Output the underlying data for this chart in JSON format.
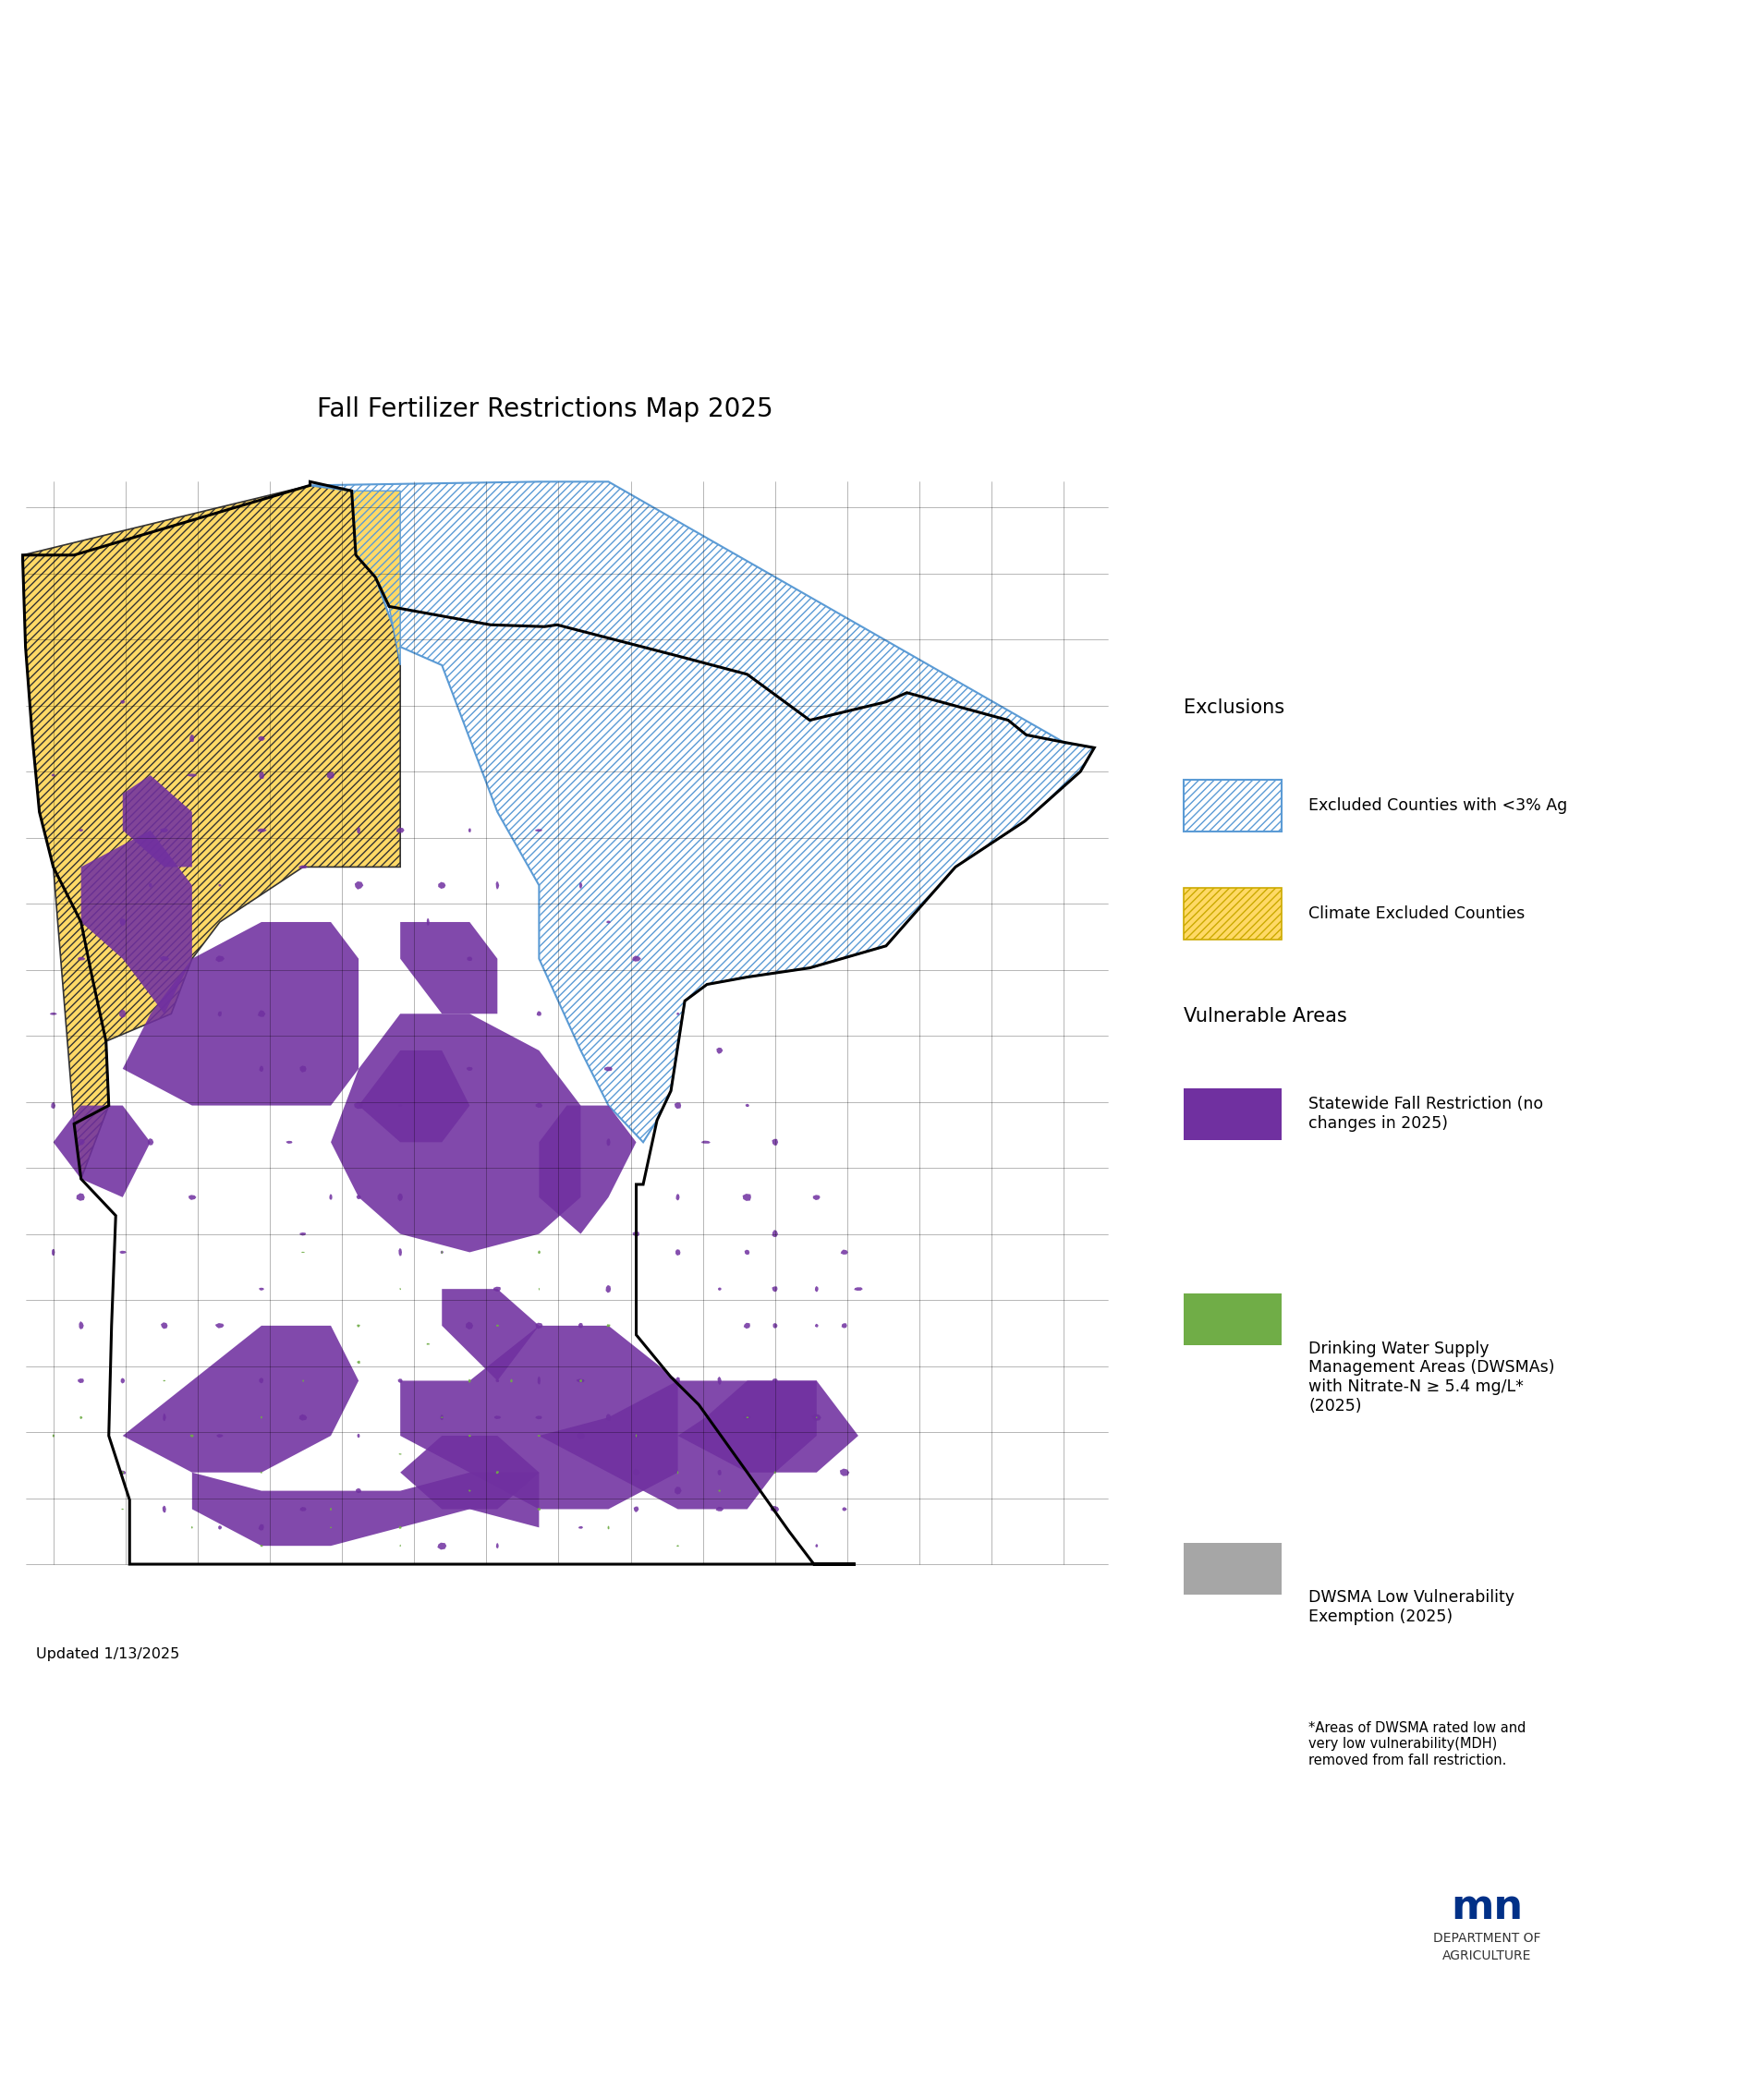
{
  "title": "Fall Fertilizer Restrictions Map 2025",
  "title_fontsize": 20,
  "updated_text": "Updated 1/13/2025",
  "background_color": "#ffffff",
  "legend": {
    "exclusions_header": "Exclusions",
    "vulnerable_header": "Vulnerable Areas",
    "items": [
      {
        "label": "Excluded Counties with <3% Ag",
        "hatch": "////",
        "facecolor": "#ffffff",
        "edgecolor": "#5b9bd5"
      },
      {
        "label": "Climate Excluded Counties",
        "hatch": "////",
        "facecolor": "#ffd966",
        "edgecolor": "#ccaa00"
      },
      {
        "label": "Statewide Fall Restriction (no\nchanges in 2025)",
        "hatch": "",
        "facecolor": "#7030a0",
        "edgecolor": "#7030a0"
      },
      {
        "label": "Drinking Water Supply\nManagement Areas (DWSMAs)\nwith Nitrate-N ≥ 5.4 mg/L*\n(2025)",
        "hatch": "",
        "facecolor": "#70ad47",
        "edgecolor": "#70ad47"
      },
      {
        "label": "DWSMA Low Vulnerability\nExemption (2025)",
        "hatch": "",
        "facecolor": "#a6a6a6",
        "edgecolor": "#a6a6a6"
      }
    ]
  },
  "footnote": "*Areas of DWSMA rated low and\nvery low vulnerability(MDH)\nremoved from fall restriction.",
  "mn_logo_text": "DEPARTMENT OF\nAGRICULTURE",
  "lon_min": -97.2,
  "lon_max": -89.4,
  "lat_min": 43.5,
  "lat_max": 49.4
}
